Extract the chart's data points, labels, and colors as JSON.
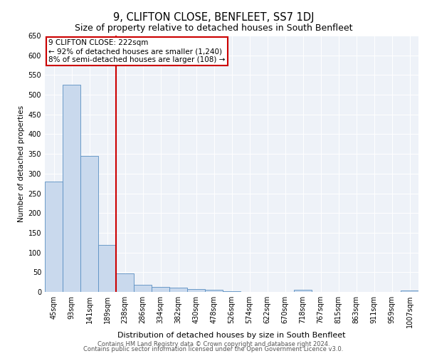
{
  "title": "9, CLIFTON CLOSE, BENFLEET, SS7 1DJ",
  "subtitle": "Size of property relative to detached houses in South Benfleet",
  "xlabel": "Distribution of detached houses by size in South Benfleet",
  "ylabel": "Number of detached properties",
  "categories": [
    "45sqm",
    "93sqm",
    "141sqm",
    "189sqm",
    "238sqm",
    "286sqm",
    "334sqm",
    "382sqm",
    "430sqm",
    "478sqm",
    "526sqm",
    "574sqm",
    "622sqm",
    "670sqm",
    "718sqm",
    "767sqm",
    "815sqm",
    "863sqm",
    "911sqm",
    "959sqm",
    "1007sqm"
  ],
  "values": [
    280,
    525,
    345,
    120,
    47,
    18,
    13,
    10,
    7,
    5,
    2,
    0,
    0,
    0,
    6,
    0,
    0,
    0,
    0,
    0,
    3
  ],
  "bar_color": "#c9d9ed",
  "bar_edge_color": "#5a8fc2",
  "vline_index": 3.5,
  "vline_color": "#cc0000",
  "annotation_line1": "9 CLIFTON CLOSE: 222sqm",
  "annotation_line2": "← 92% of detached houses are smaller (1,240)",
  "annotation_line3": "8% of semi-detached houses are larger (108) →",
  "annotation_box_color": "#ffffff",
  "annotation_box_edge": "#cc0000",
  "ylim": [
    0,
    650
  ],
  "yticks": [
    0,
    50,
    100,
    150,
    200,
    250,
    300,
    350,
    400,
    450,
    500,
    550,
    600,
    650
  ],
  "footer1": "Contains HM Land Registry data © Crown copyright and database right 2024.",
  "footer2": "Contains public sector information licensed under the Open Government Licence v3.0.",
  "bg_color": "#eef2f8",
  "title_fontsize": 10.5,
  "subtitle_fontsize": 9,
  "xlabel_fontsize": 8,
  "ylabel_fontsize": 7.5,
  "tick_fontsize": 7,
  "annotation_fontsize": 7.5,
  "footer_fontsize": 6
}
